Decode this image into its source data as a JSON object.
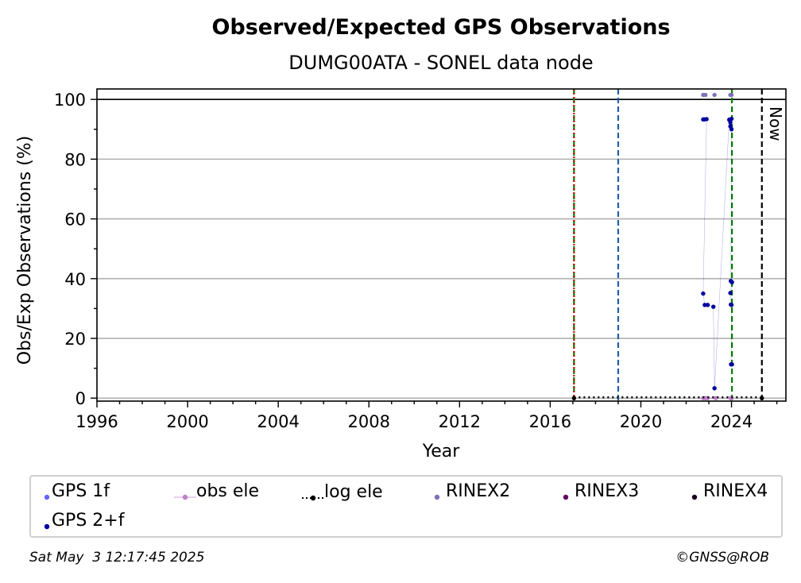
{
  "chart_data": {
    "type": "scatter",
    "title": "Observed/Expected GPS Observations",
    "subtitle": "DUMG00ATA - SONEL data node",
    "xlabel": "Year",
    "ylabel": "Obs/Exp Observations (%)",
    "xlim": [
      1996,
      2026.4
    ],
    "ylim": [
      -1,
      103.5
    ],
    "xticks": [
      1996,
      2000,
      2004,
      2008,
      2012,
      2016,
      2020,
      2024
    ],
    "xtick_labels": [
      "1996",
      "2000",
      "2004",
      "2008",
      "2012",
      "2016",
      "2020",
      "2024"
    ],
    "yticks": [
      0,
      20,
      40,
      60,
      80,
      100
    ],
    "ytick_labels": [
      "0",
      "20",
      "40",
      "60",
      "80",
      "100"
    ],
    "grid": "horizontal",
    "reference_line_y": 100,
    "vertical_lines": [
      {
        "x": 2017.05,
        "color": "#008000",
        "style": "dashed"
      },
      {
        "x": 2017.05,
        "color": "#cc0000",
        "style": "dotted"
      },
      {
        "x": 2019.0,
        "color": "#1f5fa8",
        "style": "dashed"
      },
      {
        "x": 2024.02,
        "color": "#008000",
        "style": "dashed"
      },
      {
        "x": 2025.34,
        "color": "#000000",
        "style": "dashed",
        "label": "Now"
      }
    ],
    "series": [
      {
        "name": "GPS 1f",
        "color": "#6666ff",
        "marker": "dot",
        "x": [],
        "y": []
      },
      {
        "name": "obs ele",
        "color": "#c080c8",
        "marker": "dot-line",
        "x": [
          2022.75,
          2022.85,
          2022.95,
          2023.3,
          2023.95,
          2024.0
        ],
        "y": [
          0,
          0,
          0,
          0,
          0,
          0
        ]
      },
      {
        "name": "log ele",
        "color": "#000000",
        "marker": "dot-dotted-line",
        "x": [
          2017.05,
          2025.34
        ],
        "y": [
          0,
          0
        ]
      },
      {
        "name": "RINEX2",
        "color": "#8070b8",
        "marker": "dot",
        "x": [
          2022.75,
          2022.85,
          2023.25,
          2023.95,
          2024.0
        ],
        "y": [
          101.5,
          101.5,
          101.5,
          101.5,
          101.5
        ]
      },
      {
        "name": "RINEX3",
        "color": "#660066",
        "marker": "dot",
        "x": [],
        "y": []
      },
      {
        "name": "RINEX4",
        "color": "#1a0020",
        "marker": "dot",
        "x": [],
        "y": []
      },
      {
        "name": "GPS 2+f",
        "color": "#0000a0",
        "marker": "dot",
        "x": [
          2022.75,
          2022.8,
          2022.9,
          2022.75,
          2022.82,
          2022.95,
          2023.2,
          2023.25,
          2023.9,
          2023.95,
          2024.0,
          2023.95,
          2024.0,
          2023.97,
          2024.02,
          2023.95,
          2023.97,
          2024.0,
          2023.98,
          2024.02
        ],
        "y": [
          93.3,
          93.3,
          93.4,
          35,
          31.2,
          31.2,
          30.6,
          3.3,
          93.2,
          92.3,
          93.5,
          91,
          90,
          39.2,
          38.8,
          35.2,
          31.3,
          31.2,
          11.3,
          11.3
        ]
      }
    ]
  },
  "legend": {
    "items": [
      {
        "label": "GPS 1f",
        "color": "#6666ff",
        "marker": "dot"
      },
      {
        "label": "obs ele",
        "color": "#c080c8",
        "marker": "dot-line"
      },
      {
        "label": "log ele",
        "color": "#000000",
        "marker": "dot-dotted-line"
      },
      {
        "label": "RINEX2",
        "color": "#8070b8",
        "marker": "dot"
      },
      {
        "label": "RINEX3",
        "color": "#660066",
        "marker": "dot"
      },
      {
        "label": "RINEX4",
        "color": "#1a0020",
        "marker": "dot"
      },
      {
        "label": "GPS 2+f",
        "color": "#0000a0",
        "marker": "dot"
      }
    ]
  },
  "footer": {
    "timestamp": "Sat May  3 12:17:45 2025",
    "credit": "©GNSS@ROB"
  }
}
